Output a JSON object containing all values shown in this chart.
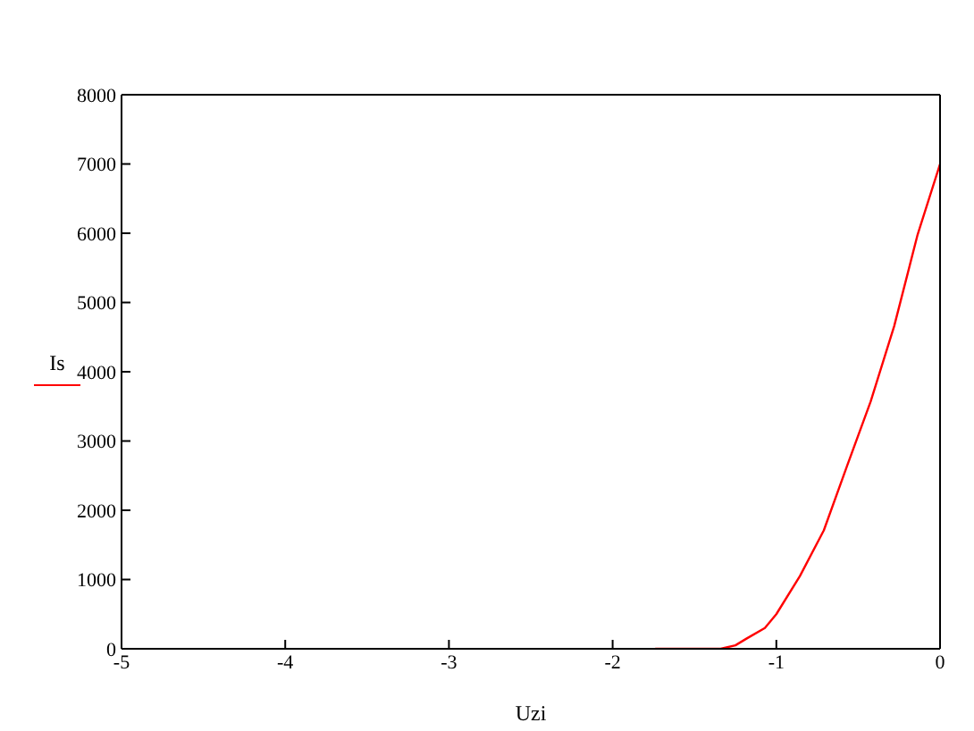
{
  "chart_data": {
    "type": "line",
    "xlabel": "Uzi",
    "series": [
      {
        "name": "Is",
        "color": "#ff0000",
        "x": [
          -1.74,
          -1.34,
          -1.25,
          -1.18,
          -1.07,
          -1.0,
          -0.856,
          -0.71,
          -0.568,
          -0.424,
          -0.28,
          -0.137,
          0
        ],
        "values": [
          0,
          0,
          50,
          150,
          300,
          500,
          1050,
          1710,
          2640,
          3570,
          4660,
          5980,
          7000
        ]
      }
    ],
    "xlim": [
      -5,
      0
    ],
    "xticks": [
      -5,
      -4,
      -3,
      -2,
      -1,
      0
    ],
    "ylim": [
      0,
      8000
    ],
    "yticks": [
      0,
      1000,
      2000,
      3000,
      4000,
      5000,
      6000,
      7000,
      8000
    ],
    "legend": "left",
    "marker": "none",
    "line_style": "solid"
  }
}
